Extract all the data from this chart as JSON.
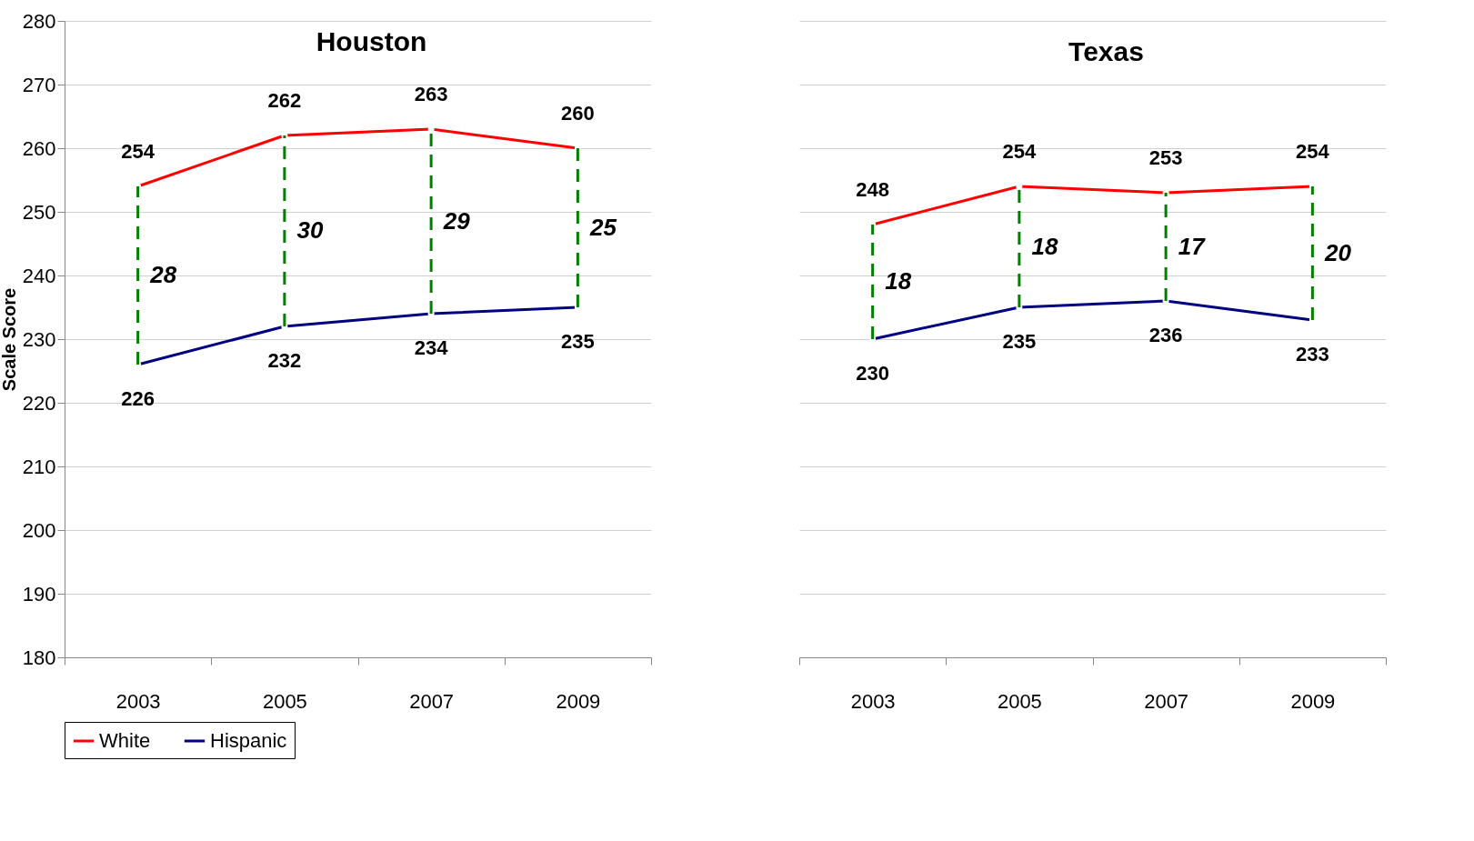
{
  "chart_data": [
    {
      "type": "line",
      "title": "Houston",
      "ylabel": "Scale Score",
      "categories": [
        "2003",
        "2005",
        "2007",
        "2009"
      ],
      "ylim": [
        180,
        280
      ],
      "yticks": [
        180,
        190,
        200,
        210,
        220,
        230,
        240,
        250,
        260,
        270,
        280
      ],
      "grid": "y",
      "legend": "bottom",
      "marker": "circle",
      "data_labels": true,
      "series": [
        {
          "name": "White",
          "color": "#ff0000",
          "values": [
            254,
            262,
            263,
            260
          ]
        },
        {
          "name": "Hispanic",
          "color": "#000080",
          "values": [
            226,
            232,
            234,
            235
          ]
        }
      ],
      "annotations": [
        "28",
        "30",
        "29",
        "25"
      ]
    },
    {
      "type": "line",
      "title": "Texas",
      "categories": [
        "2003",
        "2005",
        "2007",
        "2009"
      ],
      "ylim": [
        180,
        280
      ],
      "yticks": [
        180,
        190,
        200,
        210,
        220,
        230,
        240,
        250,
        260,
        270,
        280
      ],
      "grid": "y",
      "legend": "bottom",
      "marker": "circle",
      "data_labels": true,
      "tick_labels": "x",
      "series": [
        {
          "name": "White",
          "color": "#ff0000",
          "values": [
            248,
            254,
            253,
            254
          ]
        },
        {
          "name": "Hispanic",
          "color": "#000080",
          "values": [
            230,
            235,
            236,
            233
          ]
        }
      ],
      "annotations": [
        "18",
        "18",
        "17",
        "20"
      ]
    }
  ]
}
